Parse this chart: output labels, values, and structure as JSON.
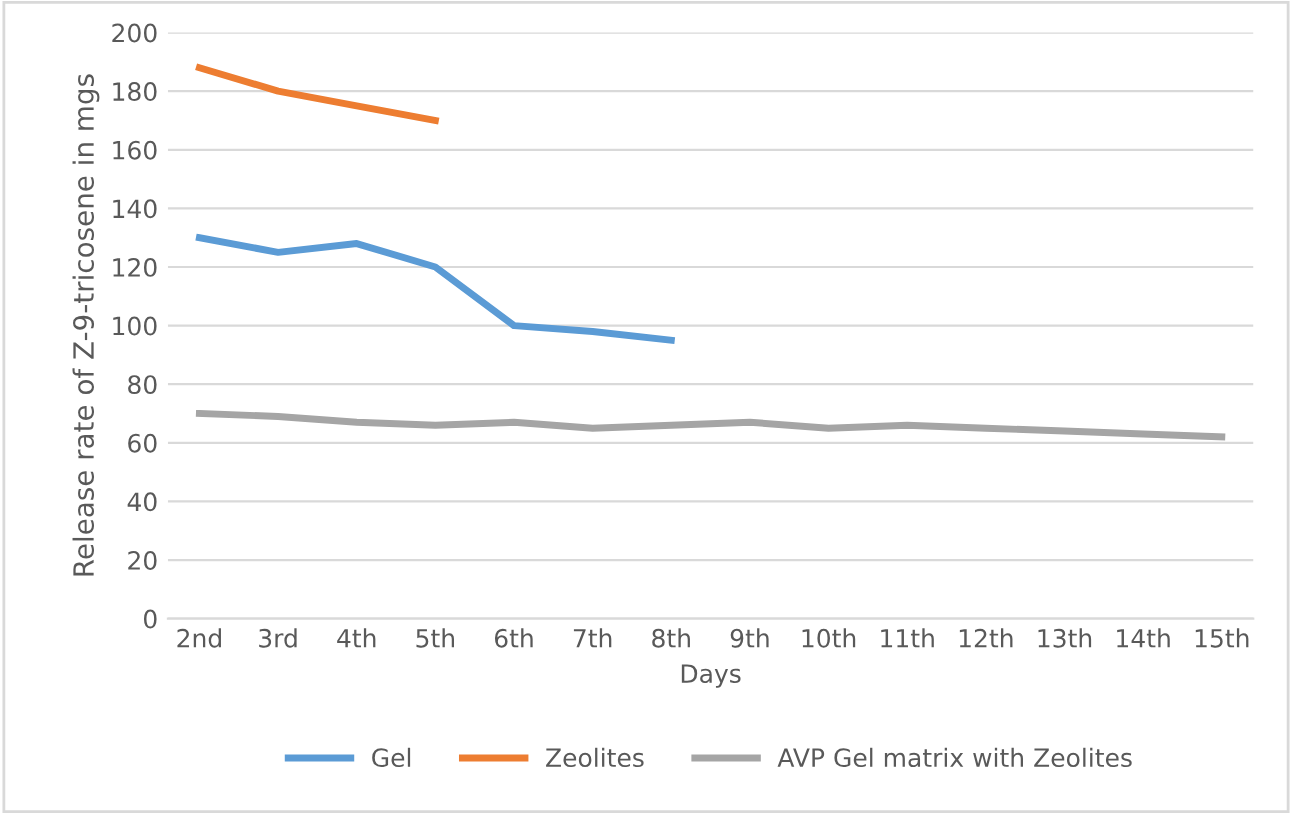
{
  "chart_data": {
    "type": "line",
    "xlabel": "Days",
    "ylabel": "Release rate of Z-9-tricosene in mgs",
    "categories": [
      "2nd",
      "3rd",
      "4th",
      "5th",
      "6th",
      "7th",
      "8th",
      "9th",
      "10th",
      "11th",
      "12th",
      "13th",
      "14th",
      "15th"
    ],
    "series": [
      {
        "name": "Gel",
        "color": "#5b9bd5",
        "values": [
          130,
          125,
          128,
          120,
          100,
          98,
          95,
          null,
          null,
          null,
          null,
          null,
          null,
          null
        ]
      },
      {
        "name": "Zeolites",
        "color": "#ed7d31",
        "values": [
          188,
          180,
          175,
          170,
          null,
          null,
          null,
          null,
          null,
          null,
          null,
          null,
          null,
          null
        ]
      },
      {
        "name": "AVP Gel matrix with Zeolites",
        "color": "#a5a5a5",
        "values": [
          70,
          69,
          67,
          66,
          67,
          65,
          66,
          67,
          65,
          66,
          65,
          64,
          63,
          62
        ]
      }
    ],
    "ylim": [
      0,
      200
    ],
    "yticks": [
      0,
      20,
      40,
      60,
      80,
      100,
      120,
      140,
      160,
      180,
      200
    ],
    "grid": "y",
    "legend": "bottom",
    "marker": "none",
    "line_style": "solid"
  }
}
